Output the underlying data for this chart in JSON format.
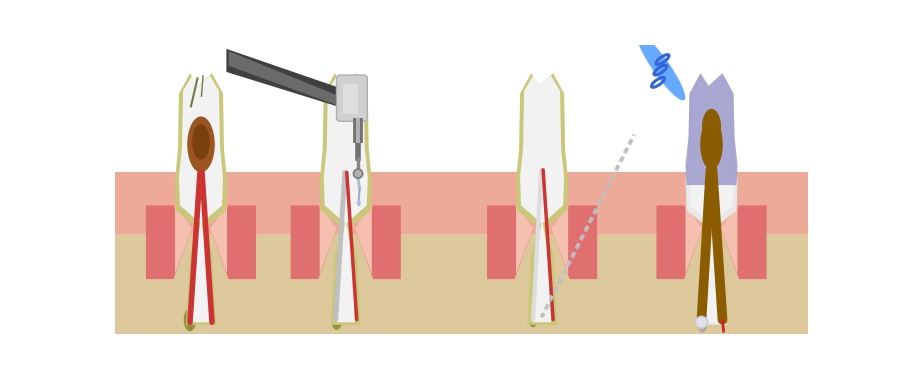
{
  "bg": "#ffffff",
  "bone": "#dcc89a",
  "gum_pink": "#e07070",
  "gum_light": "#eeaa99",
  "gum_inner": "#f5c0b0",
  "enamel_yellow": "#c8c878",
  "tooth_white": "#f2f2f2",
  "tooth_light": "#e8e8e8",
  "pulp_red": "#cc3333",
  "pulp_brown": "#9a5520",
  "pulp_darkbrown": "#7a4010",
  "pulp_gray": "#c0bfbf",
  "abscess_olive": "#8a8a30",
  "abscess_dark": "#606020",
  "crown_blue": "#9090c8",
  "gutta_brown": "#8b5c00",
  "drill_dark": "#404040",
  "drill_mid": "#707070",
  "drill_light": "#b0b0b0",
  "drill_silver": "#d0d0d0",
  "file_blue": "#3366dd",
  "file_cyan": "#66aaff",
  "file_wire": "#c0c0c0",
  "seal_white": "#e0e0e8",
  "red_vessel": "#cc2222"
}
